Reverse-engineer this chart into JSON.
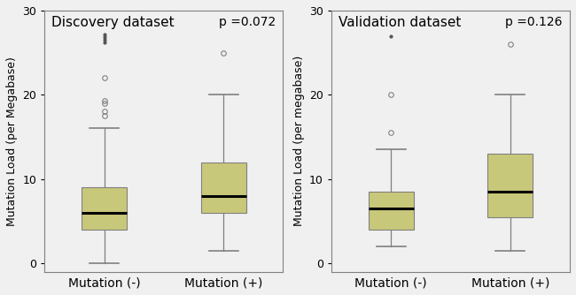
{
  "panels": [
    {
      "title": "Discovery dataset",
      "pvalue": "p =0.072",
      "ylabel": "Mutation Load (per Megabase)",
      "xlabels": [
        "Mutation (-)",
        "Mutation (+)"
      ],
      "ylim": [
        -1,
        30
      ],
      "yticks": [
        0,
        10,
        20,
        30
      ],
      "boxes": [
        {
          "whisker_low": 0.0,
          "q1": 4.0,
          "median": 6.0,
          "q3": 9.0,
          "whisker_high": 16.0,
          "outliers": [
            17.5,
            18.0,
            19.0,
            19.3,
            22.0,
            26.2,
            26.5,
            26.8,
            27.2
          ],
          "flier_marker": [
            "o",
            "o",
            "o",
            "o",
            "o",
            "d",
            "d",
            "d",
            "d"
          ]
        },
        {
          "whisker_low": 1.5,
          "q1": 6.0,
          "median": 8.0,
          "q3": 12.0,
          "whisker_high": 20.0,
          "outliers": [
            25.0
          ],
          "flier_marker": [
            "o"
          ]
        }
      ]
    },
    {
      "title": "Validation dataset",
      "pvalue": "p =0.126",
      "ylabel": "Mutation Load (per megabase)",
      "xlabels": [
        "Mutation (-)",
        "Mutation (+)"
      ],
      "ylim": [
        -1,
        30
      ],
      "yticks": [
        0,
        10,
        20,
        30
      ],
      "boxes": [
        {
          "whisker_low": 2.0,
          "q1": 4.0,
          "median": 6.5,
          "q3": 8.5,
          "whisker_high": 13.5,
          "outliers": [
            15.5,
            20.0,
            27.0
          ],
          "flier_marker": [
            "o",
            "o",
            "d"
          ]
        },
        {
          "whisker_low": 1.5,
          "q1": 5.5,
          "median": 8.5,
          "q3": 13.0,
          "whisker_high": 20.0,
          "outliers": [
            26.0
          ],
          "flier_marker": [
            "o"
          ]
        }
      ]
    }
  ],
  "box_color": "#c8c87a",
  "box_edge_color": "#808080",
  "median_color": "#000000",
  "whisker_color": "#808080",
  "flier_open_color": "#808080",
  "flier_filled_color": "#555555",
  "background_color": "#f0f0f0",
  "panel_bg": "#f0f0f0",
  "box_width": 0.38,
  "title_fontsize": 11,
  "pvalue_fontsize": 10,
  "ylabel_fontsize": 9,
  "xlabel_fontsize": 10,
  "tick_fontsize": 9
}
